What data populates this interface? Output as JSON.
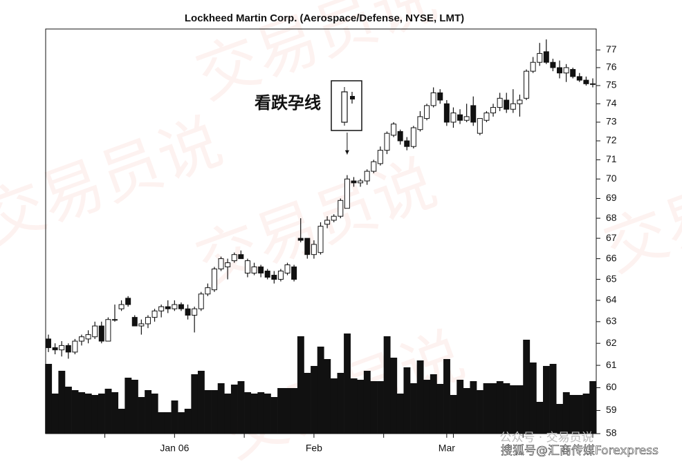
{
  "chart_data": {
    "type": "candlestick",
    "title": "Lockheed Martin Corp. (Aerospace/Defense, NYSE, LMT)",
    "annotation": "看跌孕线",
    "watermark": "交易员说",
    "footer_mark": "公众号 · 交易员说",
    "footer_credit": "搜狐号@汇商传媒Forexpress",
    "log_scale": true,
    "ylim": [
      58,
      78.2
    ],
    "yticks": [
      58,
      59,
      60,
      61,
      62,
      63,
      64,
      65,
      66,
      67,
      68,
      69,
      70,
      71,
      72,
      73,
      74,
      75,
      76,
      77
    ],
    "up_color": "#ffffff",
    "down_color": "#111111",
    "volume_color": "#111111",
    "annotated_index": 45,
    "categories": [
      null,
      null,
      null,
      null,
      null,
      null,
      null,
      null,
      null,
      null,
      null,
      null,
      null,
      null,
      null,
      null,
      null,
      null,
      null,
      "Jan 06",
      null,
      null,
      null,
      null,
      null,
      null,
      null,
      null,
      null,
      null,
      null,
      null,
      null,
      null,
      null,
      null,
      null,
      null,
      null,
      null,
      "Feb",
      null,
      null,
      null,
      null,
      null,
      null,
      null,
      null,
      null,
      null,
      null,
      null,
      null,
      null,
      null,
      null,
      null,
      null,
      null,
      "Mar",
      null,
      null,
      null,
      null,
      null,
      null,
      null,
      null,
      null,
      null,
      null,
      null,
      null,
      null,
      null,
      null,
      null,
      null,
      null,
      null,
      null,
      null
    ],
    "open": [
      62.2,
      61.8,
      61.7,
      61.9,
      61.6,
      62.1,
      62.2,
      62.3,
      62.8,
      62.1,
      63.1,
      63.6,
      64.1,
      63.2,
      62.8,
      62.9,
      63.2,
      63.5,
      63.7,
      63.6,
      63.8,
      63.6,
      63.3,
      63.6,
      64.3,
      64.5,
      65.5,
      65.6,
      65.9,
      66.2,
      65.3,
      65.3,
      65.6,
      65.4,
      65.2,
      65.0,
      65.3,
      65.6,
      67.0,
      67.0,
      66.2,
      66.3,
      67.7,
      67.9,
      68.1,
      68.5,
      69.9,
      69.8,
      69.9,
      70.4,
      70.8,
      71.5,
      72.3,
      72.5,
      72.0,
      71.7,
      72.6,
      73.2,
      73.9,
      74.6,
      74.0,
      73.0,
      73.4,
      73.1,
      73.9,
      72.4,
      73.1,
      73.5,
      73.8,
      74.2,
      73.7,
      74.0,
      74.3,
      75.8,
      76.3,
      76.9,
      76.3,
      76.0,
      75.7,
      75.9,
      75.5,
      75.3,
      75.1
    ],
    "high": [
      62.4,
      62.0,
      62.1,
      62.0,
      62.2,
      62.4,
      62.6,
      63.0,
      63.0,
      63.2,
      63.8,
      64.0,
      64.2,
      63.3,
      63.1,
      63.3,
      63.6,
      63.8,
      64.0,
      64.0,
      63.9,
      63.8,
      63.7,
      64.4,
      64.8,
      65.6,
      66.1,
      66.0,
      66.3,
      66.4,
      66.0,
      65.8,
      65.7,
      65.5,
      65.4,
      65.5,
      65.8,
      65.7,
      68.0,
      67.0,
      66.9,
      67.8,
      68.1,
      68.2,
      69.0,
      70.2,
      70.1,
      70.0,
      70.5,
      71.0,
      71.7,
      72.5,
      73.0,
      72.6,
      72.2,
      72.8,
      73.6,
      74.0,
      74.9,
      74.8,
      74.2,
      73.8,
      73.7,
      74.0,
      74.4,
      73.2,
      73.6,
      74.0,
      74.6,
      74.6,
      74.8,
      74.5,
      75.9,
      76.6,
      77.4,
      77.6,
      76.5,
      76.4,
      76.2,
      76.0,
      75.7,
      75.5,
      75.4
    ],
    "low": [
      61.6,
      61.5,
      61.4,
      61.3,
      61.5,
      61.9,
      62.0,
      62.2,
      62.0,
      62.1,
      63.0,
      63.5,
      63.7,
      62.8,
      62.4,
      62.7,
      63.0,
      63.2,
      63.4,
      63.5,
      63.5,
      63.1,
      62.5,
      63.5,
      64.2,
      64.4,
      65.4,
      65.0,
      65.8,
      66.0,
      65.1,
      65.2,
      65.1,
      65.0,
      64.8,
      64.9,
      65.2,
      64.9,
      66.8,
      66.0,
      66.0,
      66.2,
      67.5,
      67.8,
      68.0,
      68.5,
      69.6,
      69.6,
      69.7,
      70.3,
      70.7,
      71.3,
      72.2,
      71.8,
      71.5,
      71.6,
      72.5,
      73.1,
      73.8,
      74.0,
      72.8,
      72.7,
      72.9,
      73.0,
      72.8,
      72.3,
      73.0,
      73.3,
      73.6,
      73.5,
      73.5,
      73.3,
      74.2,
      75.7,
      76.1,
      76.2,
      75.8,
      75.4,
      75.2,
      75.4,
      75.2,
      75.0,
      74.9
    ],
    "close": [
      61.8,
      61.7,
      61.9,
      61.6,
      62.1,
      62.3,
      62.4,
      62.8,
      62.1,
      63.1,
      63.1,
      63.8,
      63.8,
      62.8,
      62.9,
      63.2,
      63.5,
      63.7,
      63.6,
      63.8,
      63.6,
      63.3,
      63.6,
      64.3,
      64.6,
      65.5,
      66.0,
      65.8,
      66.2,
      66.0,
      65.9,
      65.6,
      65.3,
      65.1,
      65.0,
      65.4,
      65.7,
      65.0,
      66.9,
      66.2,
      66.7,
      67.6,
      67.9,
      68.1,
      68.9,
      70.0,
      69.8,
      69.9,
      70.4,
      70.9,
      71.5,
      72.4,
      72.9,
      72.0,
      71.7,
      72.7,
      73.3,
      73.9,
      74.6,
      74.2,
      73.0,
      73.5,
      73.1,
      73.3,
      73.0,
      73.2,
      73.5,
      73.8,
      74.3,
      73.7,
      74.0,
      74.2,
      75.8,
      76.3,
      76.8,
      76.3,
      76.0,
      75.7,
      76.0,
      75.5,
      75.3,
      75.1,
      75.1
    ],
    "volume": [
      101,
      58,
      91,
      68,
      63,
      60,
      58,
      56,
      58,
      65,
      60,
      36,
      81,
      78,
      53,
      63,
      58,
      31,
      31,
      48,
      31,
      36,
      86,
      91,
      63,
      63,
      73,
      58,
      71,
      76,
      60,
      58,
      60,
      58,
      53,
      66,
      66,
      66,
      141,
      88,
      98,
      126,
      108,
      80,
      88,
      145,
      80,
      78,
      91,
      76,
      76,
      141,
      110,
      58,
      96,
      73,
      106,
      78,
      86,
      72,
      108,
      56,
      78,
      66,
      76,
      63,
      73,
      73,
      76,
      73,
      70,
      70,
      136,
      103,
      46,
      98,
      101,
      43,
      60,
      56,
      56,
      58,
      76
    ]
  }
}
